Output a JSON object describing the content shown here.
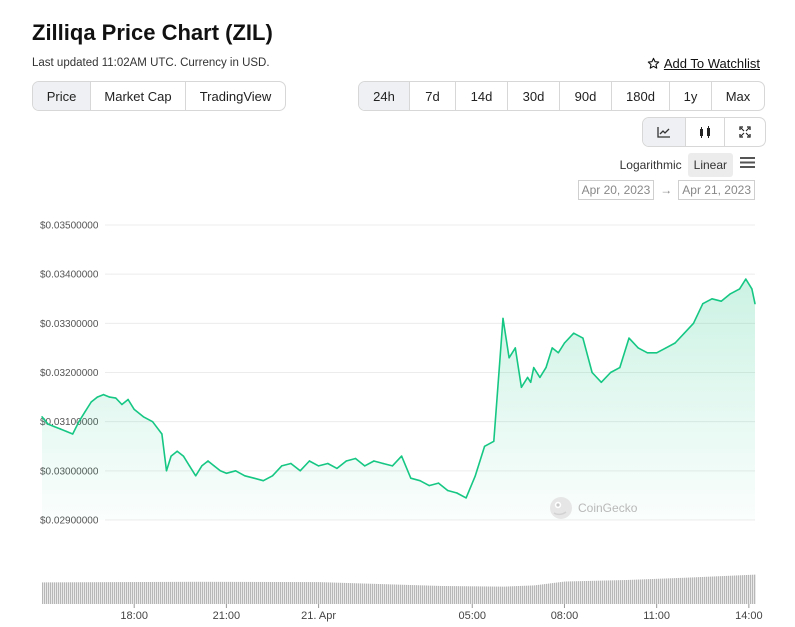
{
  "header": {
    "title": "Zilliqa Price Chart (ZIL)",
    "updated": "Last updated 11:02AM UTC. Currency in USD.",
    "watchlist_label": "Add To Watchlist"
  },
  "tabs": {
    "type": [
      "Price",
      "Market Cap",
      "TradingView"
    ],
    "type_active": "Price",
    "range": [
      "24h",
      "7d",
      "14d",
      "30d",
      "90d",
      "180d",
      "1y",
      "Max"
    ],
    "range_active": "24h"
  },
  "view_icons": [
    "line-chart-icon",
    "candlestick-icon",
    "expand-icon"
  ],
  "scale": {
    "log_label": "Logarithmic",
    "linear_label": "Linear",
    "active": "Linear"
  },
  "dates": {
    "from": "Apr 20, 2023",
    "arrow": "→",
    "to": "Apr 21, 2023"
  },
  "watermark": "CoinGecko",
  "colors": {
    "line": "#16c784",
    "fill": "#16c784",
    "volume": "#b7b7b7",
    "grid": "#ececec"
  },
  "chart_data": {
    "type": "area",
    "ylabel": "",
    "xlabel": "",
    "ylim": [
      0.029,
      0.035
    ],
    "yticks": [
      "$0.03500000",
      "$0.03400000",
      "$0.03300000",
      "$0.03200000",
      "$0.03100000",
      "$0.03000000",
      "$0.02900000"
    ],
    "ytick_values": [
      0.035,
      0.034,
      0.033,
      0.032,
      0.031,
      0.03,
      0.029
    ],
    "xlim": [
      15.0,
      38.2
    ],
    "xticks": [
      "18:00",
      "21:00",
      "21. Apr",
      "05:00",
      "08:00",
      "11:00",
      "14:00"
    ],
    "xtick_values": [
      18,
      21,
      24,
      29,
      32,
      35,
      38
    ],
    "grid": true,
    "legend": "none",
    "series": [
      {
        "x": [
          15.0,
          15.2,
          15.4,
          15.6,
          15.8,
          16.0,
          16.2,
          16.4,
          16.6,
          16.8,
          17.0,
          17.2,
          17.4,
          17.6,
          17.8,
          18.0,
          18.3,
          18.6,
          18.9,
          19.05,
          19.2,
          19.4,
          19.6,
          19.8,
          20.0,
          20.2,
          20.4,
          20.6,
          20.8,
          21.0,
          21.3,
          21.6,
          21.9,
          22.2,
          22.5,
          22.8,
          23.1,
          23.4,
          23.7,
          24.0,
          24.3,
          24.6,
          24.9,
          25.2,
          25.5,
          25.8,
          26.1,
          26.4,
          26.7,
          27.0,
          27.3,
          27.6,
          27.9,
          28.2,
          28.5,
          28.8,
          29.1,
          29.4,
          29.7,
          30.0,
          30.2,
          30.4,
          30.6,
          30.8,
          30.9,
          31.0,
          31.2,
          31.4,
          31.6,
          31.8,
          32.0,
          32.3,
          32.6,
          32.9,
          33.2,
          33.5,
          33.8,
          34.1,
          34.4,
          34.7,
          35.0,
          35.3,
          35.6,
          35.9,
          36.2,
          36.5,
          36.8,
          37.1,
          37.4,
          37.7,
          37.9,
          38.1,
          38.2
        ],
        "y": [
          0.0311,
          0.03095,
          0.0309,
          0.03085,
          0.0308,
          0.03075,
          0.031,
          0.0312,
          0.0314,
          0.0315,
          0.03155,
          0.0315,
          0.03148,
          0.03135,
          0.03145,
          0.03125,
          0.0311,
          0.031,
          0.03075,
          0.03,
          0.0303,
          0.0304,
          0.0303,
          0.0301,
          0.0299,
          0.0301,
          0.0302,
          0.0301,
          0.03,
          0.02995,
          0.03,
          0.0299,
          0.02985,
          0.0298,
          0.0299,
          0.0301,
          0.03015,
          0.03,
          0.0302,
          0.0301,
          0.03015,
          0.03005,
          0.0302,
          0.03025,
          0.0301,
          0.0302,
          0.03015,
          0.0301,
          0.0303,
          0.02985,
          0.0298,
          0.0297,
          0.02975,
          0.0296,
          0.02955,
          0.02945,
          0.0299,
          0.0305,
          0.0306,
          0.0331,
          0.0323,
          0.0325,
          0.0317,
          0.0319,
          0.0318,
          0.0321,
          0.0319,
          0.0321,
          0.0325,
          0.0324,
          0.0326,
          0.0328,
          0.0327,
          0.032,
          0.0318,
          0.032,
          0.0321,
          0.0327,
          0.0325,
          0.0324,
          0.0324,
          0.0325,
          0.0326,
          0.0328,
          0.033,
          0.0334,
          0.0335,
          0.03345,
          0.0336,
          0.0337,
          0.0339,
          0.0337,
          0.0334
        ]
      }
    ],
    "volume": {
      "x": [
        15.0,
        20.0,
        24.0,
        28.0,
        30.0,
        31.0,
        32.0,
        34.0,
        36.0,
        38.2
      ],
      "v": [
        0.72,
        0.74,
        0.73,
        0.6,
        0.58,
        0.62,
        0.75,
        0.8,
        0.88,
        0.98
      ]
    }
  }
}
